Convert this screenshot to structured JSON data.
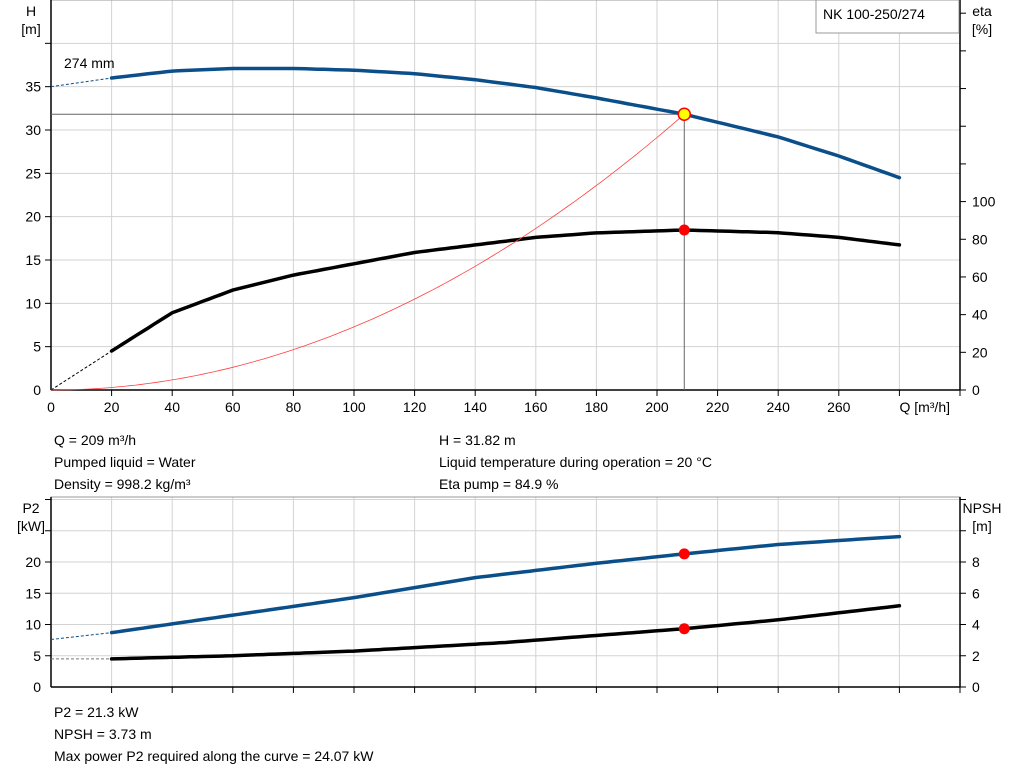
{
  "chart_data": [
    {
      "type": "line",
      "title": "NK 100-250/274",
      "impeller_label": "274 mm",
      "xlabel": "Q [m³/h]",
      "xlim": [
        0,
        300
      ],
      "xticks": [
        0,
        20,
        40,
        60,
        80,
        100,
        120,
        140,
        160,
        180,
        200,
        220,
        240,
        260
      ],
      "ylabel_left": [
        "H",
        "[m]"
      ],
      "ylim_left": [
        0,
        45
      ],
      "yticks_left": [
        0,
        5,
        10,
        15,
        20,
        25,
        30,
        35
      ],
      "ylabel_right": [
        "eta",
        "[%]"
      ],
      "ylim_right": [
        0,
        207
      ],
      "yticks_right": [
        0,
        20,
        40,
        60,
        80,
        100
      ],
      "grid": true,
      "series": [
        {
          "name": "H",
          "axis": "left",
          "color": "#0b4f8a",
          "x": [
            20,
            40,
            60,
            80,
            100,
            120,
            140,
            160,
            180,
            209,
            240,
            260,
            280
          ],
          "y": [
            36,
            36.8,
            37.1,
            37.1,
            36.9,
            36.5,
            35.8,
            34.9,
            33.7,
            31.82,
            29.2,
            27,
            24.5
          ],
          "extrapolated": {
            "x": [
              0,
              20
            ],
            "y": [
              35,
              36
            ]
          }
        },
        {
          "name": "eta",
          "axis": "right",
          "color": "#000000",
          "x": [
            20,
            40,
            60,
            80,
            100,
            120,
            140,
            160,
            180,
            209,
            240,
            260,
            280
          ],
          "y": [
            20.7,
            41,
            53,
            61,
            67,
            73,
            77,
            81,
            83.4,
            84.9,
            83.5,
            81,
            77
          ],
          "extrapolated": {
            "x": [
              0,
              20
            ],
            "y": [
              0,
              20.7
            ]
          }
        },
        {
          "name": "system curve",
          "axis": "left",
          "color": "#ff4040",
          "x": [
            0,
            209
          ],
          "y": [
            0,
            31.82
          ],
          "shape": "quadratic"
        }
      ],
      "operating_point": {
        "Q": 209,
        "H": 31.82,
        "eta": 84.9
      }
    },
    {
      "type": "line",
      "xlim": [
        0,
        300
      ],
      "xticks": [
        0,
        20,
        40,
        60,
        80,
        100,
        120,
        140,
        160,
        180,
        200,
        220,
        240,
        260,
        280
      ],
      "ylabel_left": [
        "P2",
        "[kW]"
      ],
      "ylim_left": [
        0,
        30.4
      ],
      "yticks_left": [
        0,
        5,
        10,
        15,
        20
      ],
      "ylabel_right": [
        "NPSH",
        "[m]"
      ],
      "ylim_right": [
        0,
        12.16
      ],
      "yticks_right": [
        0,
        2,
        4,
        6,
        8
      ],
      "grid": true,
      "series": [
        {
          "name": "P2",
          "axis": "left",
          "color": "#0b4f8a",
          "x": [
            20,
            60,
            100,
            140,
            180,
            209,
            240,
            280
          ],
          "y": [
            8.7,
            11.5,
            14.3,
            17.5,
            19.8,
            21.3,
            22.8,
            24.07
          ],
          "extrapolated": {
            "x": [
              0,
              20
            ],
            "y": [
              7.6,
              8.7
            ]
          }
        },
        {
          "name": "NPSH",
          "axis": "right",
          "color": "#000000",
          "x": [
            20,
            60,
            100,
            150,
            209,
            240,
            280
          ],
          "y": [
            1.8,
            2.0,
            2.3,
            2.85,
            3.73,
            4.3,
            5.2
          ],
          "extrapolated": {
            "x": [
              0,
              20
            ],
            "y": [
              1.8,
              1.8
            ]
          }
        }
      ],
      "operating_point": {
        "Q": 209,
        "P2": 21.3,
        "NPSH": 3.73
      }
    }
  ],
  "info_top_left": [
    "Q = 209 m³/h",
    "Pumped liquid = Water",
    "Density = 998.2 kg/m³"
  ],
  "info_top_right": [
    "H = 31.82 m",
    "Liquid temperature during operation = 20 °C",
    "Eta pump = 84.9 %"
  ],
  "info_bottom": [
    "P2 = 21.3 kW",
    "NPSH = 3.73 m",
    "Max power P2 required along the curve = 24.07 kW"
  ],
  "colors": {
    "blue": "#0b4f8a",
    "marker": "#ff0000",
    "op_marker": "#ffff00",
    "grid": "#d3d3d3"
  }
}
